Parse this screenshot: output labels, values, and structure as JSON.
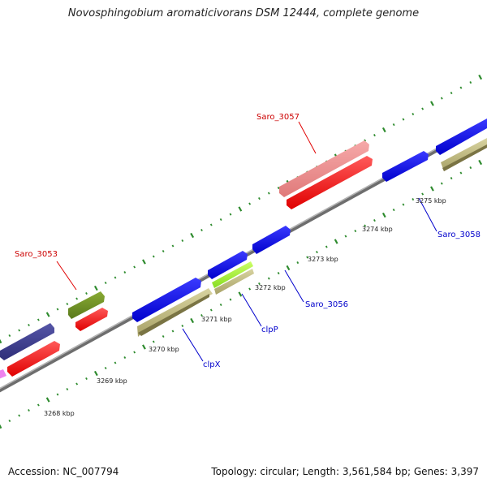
{
  "header": {
    "title": "Novosphingobium aromaticivorans DSM 12444, complete genome"
  },
  "footer": {
    "accession": "Accession: NC_007794",
    "summary": "Topology: circular; Length: 3,561,584 bp; Genes: 3,397"
  },
  "axis": {
    "tick_labels": [
      "3268 kbp",
      "3269 kbp",
      "3270 kbp",
      "3271 kbp",
      "3272 kbp",
      "3273 kbp",
      "3274 kbp",
      "3275 kbp"
    ]
  },
  "gene_labels": {
    "saro_3053": "Saro_3053",
    "saro_3057": "Saro_3057",
    "clpx": "clpX",
    "clpp": "clpP",
    "saro_3056": "Saro_3056",
    "saro_3058": "Saro_3058"
  },
  "colors": {
    "backbone": "#8c8c8c",
    "tick_marks": "#2e8b2e",
    "red_gene": "#ff0000",
    "pink_gene": "#f08a8a",
    "blue_gene": "#0000ee",
    "khaki_gene": "#bdb77a",
    "olive_gene": "#6b8e23",
    "slate_gene": "#3c3c8c",
    "lime_gene": "#a6ff3c",
    "magenta_gene": "#ee82ee",
    "label_red": "#cc0000",
    "label_blue": "#0000cc"
  }
}
